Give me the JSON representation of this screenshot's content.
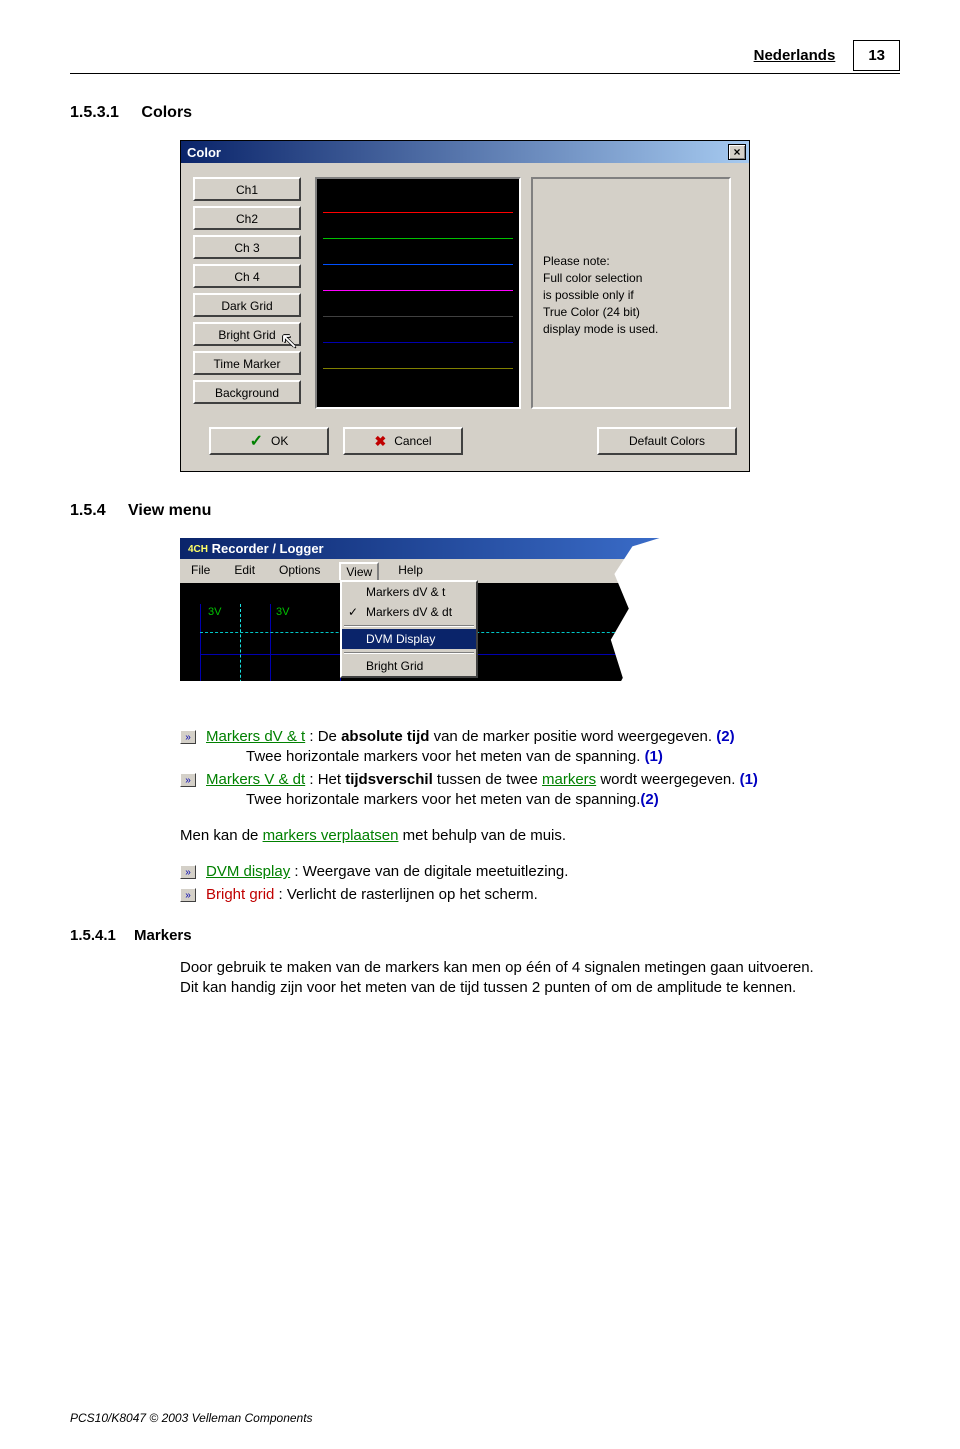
{
  "header": {
    "lang": "Nederlands",
    "page": "13"
  },
  "sec_colors": {
    "num": "1.5.3.1",
    "title": "Colors"
  },
  "color_dialog": {
    "title": "Color",
    "buttons": [
      "Ch1",
      "Ch2",
      "Ch 3",
      "Ch 4",
      "Dark Grid",
      "Bright Grid",
      "Time Marker",
      "Background"
    ],
    "preview_colors": [
      "#ff0000",
      "#00c000",
      "#0050ff",
      "#ff00ff",
      "#404040",
      "#0000b0",
      "#808000",
      "#000000"
    ],
    "note": "Please note:\nFull color selection\nis possible only if\nTrue Color (24 bit)\ndisplay mode is used.",
    "ok": "OK",
    "cancel": "Cancel",
    "defaults": "Default Colors"
  },
  "sec_view": {
    "num": "1.5.4",
    "title": "View menu"
  },
  "view_shot": {
    "app_title": "Recorder / Logger",
    "icon_prefix": "4CH",
    "menus": [
      "File",
      "Edit",
      "Options",
      "View",
      "Help"
    ],
    "items": [
      "Markers dV & t",
      "Markers dV & dt",
      "DVM Display",
      "Bright Grid"
    ],
    "checked_index": 1,
    "selected_index": 2,
    "y_labels": [
      "3V",
      "3V"
    ]
  },
  "bullets1": {
    "a_label": "Markers dV & t",
    "a_text": " : De ",
    "a_bold": "absolute tijd",
    "a_rest": " van de marker positie word weergegeven. ",
    "a_num": "(2)",
    "a_sub": "Twee horizontale markers voor het meten van de spanning. ",
    "a_sub_num": "(1)",
    "b_label": "Markers V & dt",
    "b_text": " : Het ",
    "b_bold": "tijdsverschil",
    "b_rest1": " tussen de twee ",
    "b_green": "markers",
    "b_rest2": " wordt weergegeven. ",
    "b_num": "(1)",
    "b_sub": "Twee horizontale markers voor het meten van de spanning.",
    "b_sub_num": "(2)"
  },
  "move_text": {
    "pre": "Men kan de ",
    "link": "markers verplaatsen",
    "post": " met behulp van de muis."
  },
  "bullets2": {
    "c_label": "DVM display",
    "c_text": " : Weergave van de digitale meetuitlezing.",
    "d_label": "Bright grid",
    "d_text": " : Verlicht de rasterlijnen op het scherm."
  },
  "sec_markers": {
    "num": "1.5.4.1",
    "title": "Markers"
  },
  "markers_text1": "Door gebruik te maken van de markers kan men op één of 4 signalen metingen gaan uitvoeren.",
  "markers_text2": "Dit kan handig zijn voor het meten van de tijd tussen 2 punten of om de amplitude te kennen.",
  "footer": "PCS10/K8047 © 2003 Velleman Components"
}
